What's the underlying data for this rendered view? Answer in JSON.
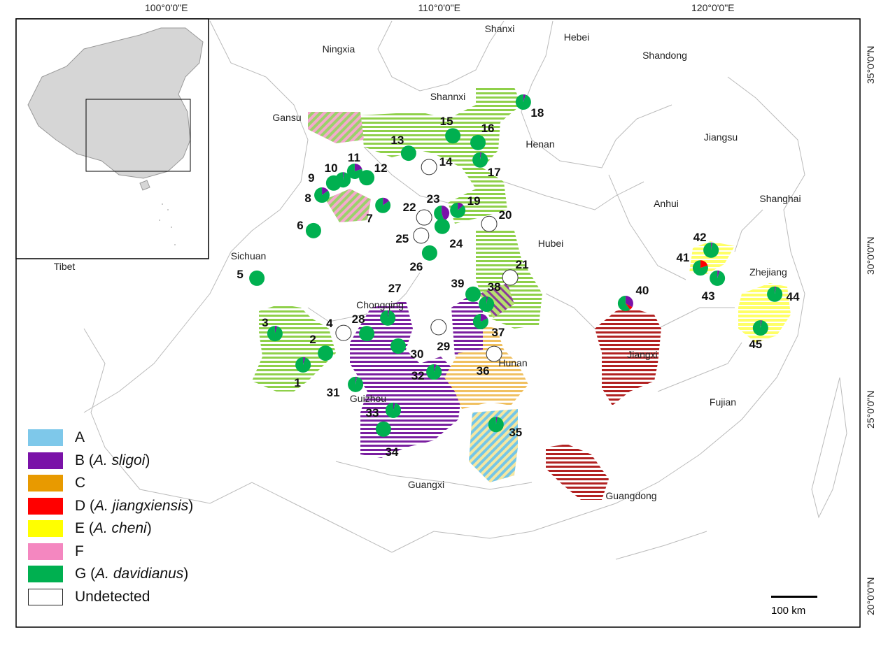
{
  "axes": {
    "top_ticks": [
      {
        "lon": 100,
        "label": "100°0'0\"E"
      },
      {
        "lon": 110,
        "label": "110°0'0\"E"
      },
      {
        "lon": 120,
        "label": "120°0'0\"E"
      }
    ],
    "right_ticks": [
      {
        "lat": 35,
        "label": "35°0'0\"N"
      },
      {
        "lat": 30,
        "label": "30°0'0\"N"
      },
      {
        "lat": 25,
        "label": "25°0'0\"N"
      },
      {
        "lat": 20,
        "label": "20°0'0\"N"
      }
    ]
  },
  "provinces": [
    "Shanxi",
    "Hebei",
    "Ningxia",
    "Shandong",
    "Shannxi",
    "Gansu",
    "Henan",
    "Jiangsu",
    "Anhui",
    "Shanghai",
    "Sichuan",
    "Hubei",
    "Tibet",
    "Zhejiang",
    "Chongqing",
    "Hunan",
    "Jiangxi",
    "Guizhou",
    "Fujian",
    "Guangxi",
    "Guangdong"
  ],
  "legend": [
    {
      "key": "A",
      "label": "A",
      "species": "",
      "color": "#7ec8ea"
    },
    {
      "key": "B",
      "label": "B (",
      "species": "A. sligoi",
      "color": "#7a12a8"
    },
    {
      "key": "C",
      "label": "C",
      "species": "",
      "color": "#e89a00"
    },
    {
      "key": "D",
      "label": "D (",
      "species": "A. jiangxiensis",
      "color": "#ff0000"
    },
    {
      "key": "E",
      "label": "E (",
      "species": "A. cheni",
      "color": "#ffff00"
    },
    {
      "key": "F",
      "label": "F",
      "species": "",
      "color": "#f487c0"
    },
    {
      "key": "G",
      "label": "G (",
      "species": "A. davidianus",
      "color": "#00b050"
    },
    {
      "key": "U",
      "label": "Undetected",
      "species": "",
      "color": "#ffffff"
    }
  ],
  "scale_bar": "100 km",
  "sites": [
    {
      "id": "1",
      "lon": 104.51,
      "lat": 26.4,
      "comp": {
        "G": 0.95,
        "B": 0.05
      }
    },
    {
      "id": "2",
      "lon": 105.33,
      "lat": 26.73,
      "comp": {
        "G": 1
      }
    },
    {
      "id": "3",
      "lon": 103.48,
      "lat": 27.28,
      "comp": {
        "G": 0.95,
        "B": 0.05
      }
    },
    {
      "id": "4",
      "lon": 105.99,
      "lat": 27.3,
      "comp": {
        "U": 1
      }
    },
    {
      "id": "5",
      "lon": 102.82,
      "lat": 28.84,
      "comp": {
        "G": 1
      }
    },
    {
      "id": "6",
      "lon": 104.89,
      "lat": 30.18,
      "comp": {
        "G": 1
      }
    },
    {
      "id": "7",
      "lon": 107.43,
      "lat": 30.89,
      "comp": {
        "G": 0.85,
        "B": 0.15
      }
    },
    {
      "id": "8",
      "lon": 105.2,
      "lat": 31.18,
      "comp": {
        "G": 0.85,
        "B": 0.15
      }
    },
    {
      "id": "9",
      "lon": 105.63,
      "lat": 31.52,
      "comp": {
        "G": 1
      }
    },
    {
      "id": "10",
      "lon": 105.97,
      "lat": 31.61,
      "comp": {
        "G": 0.97,
        "B": 0.03
      }
    },
    {
      "id": "11",
      "lon": 106.4,
      "lat": 31.85,
      "comp": {
        "G": 0.8,
        "B": 0.2
      }
    },
    {
      "id": "12",
      "lon": 106.84,
      "lat": 31.67,
      "comp": {
        "G": 1
      }
    },
    {
      "id": "13",
      "lon": 108.37,
      "lat": 32.36,
      "comp": {
        "G": 1
      }
    },
    {
      "id": "14",
      "lon": 109.12,
      "lat": 31.97,
      "comp": {
        "U": 1
      }
    },
    {
      "id": "15",
      "lon": 109.99,
      "lat": 32.85,
      "comp": {
        "G": 1
      }
    },
    {
      "id": "16",
      "lon": 110.91,
      "lat": 32.66,
      "comp": {
        "G": 1
      }
    },
    {
      "id": "17",
      "lon": 110.99,
      "lat": 32.17,
      "comp": {
        "G": 0.97,
        "B": 0.03
      }
    },
    {
      "id": "18",
      "lon": 112.57,
      "lat": 33.8,
      "comp": {
        "G": 0.95,
        "B": 0.05
      }
    },
    {
      "id": "19",
      "lon": 110.17,
      "lat": 30.75,
      "comp": {
        "G": 0.87,
        "B": 0.13
      }
    },
    {
      "id": "20",
      "lon": 111.32,
      "lat": 30.37,
      "comp": {
        "U": 1
      }
    },
    {
      "id": "21",
      "lon": 112.09,
      "lat": 28.86,
      "comp": {
        "U": 1
      }
    },
    {
      "id": "22",
      "lon": 108.94,
      "lat": 30.55,
      "comp": {
        "U": 1
      }
    },
    {
      "id": "23",
      "lon": 109.58,
      "lat": 30.67,
      "comp": {
        "G": 0.55,
        "B": 0.45
      }
    },
    {
      "id": "24",
      "lon": 109.6,
      "lat": 30.3,
      "comp": {
        "G": 1
      }
    },
    {
      "id": "25",
      "lon": 108.83,
      "lat": 30.04,
      "comp": {
        "U": 1
      }
    },
    {
      "id": "26",
      "lon": 109.14,
      "lat": 29.55,
      "comp": {
        "G": 1
      }
    },
    {
      "id": "27",
      "lon": 107.61,
      "lat": 27.72,
      "comp": {
        "G": 0.97,
        "B": 0.03
      }
    },
    {
      "id": "28",
      "lon": 106.84,
      "lat": 27.28,
      "comp": {
        "G": 1
      }
    },
    {
      "id": "29",
      "lon": 109.47,
      "lat": 27.46,
      "comp": {
        "U": 1
      }
    },
    {
      "id": "30",
      "lon": 107.99,
      "lat": 26.93,
      "comp": {
        "G": 1
      }
    },
    {
      "id": "31",
      "lon": 106.43,
      "lat": 25.85,
      "comp": {
        "G": 0.97,
        "B": 0.03
      }
    },
    {
      "id": "32",
      "lon": 109.3,
      "lat": 26.2,
      "comp": {
        "G": 0.95,
        "B": 0.05
      }
    },
    {
      "id": "33",
      "lon": 107.81,
      "lat": 25.12,
      "comp": {
        "G": 0.96,
        "B": 0.04
      }
    },
    {
      "id": "34",
      "lon": 107.45,
      "lat": 24.59,
      "comp": {
        "G": 1
      }
    },
    {
      "id": "35",
      "lon": 111.57,
      "lat": 24.72,
      "comp": {
        "G": 0.97,
        "B": 0.03
      }
    },
    {
      "id": "36",
      "lon": 111.5,
      "lat": 26.71,
      "comp": {
        "U": 1
      }
    },
    {
      "id": "37",
      "lon": 111.01,
      "lat": 27.62,
      "comp": {
        "G": 0.82,
        "B": 0.18
      }
    },
    {
      "id": "38",
      "lon": 111.22,
      "lat": 28.11,
      "comp": {
        "G": 0.97,
        "B": 0.03
      }
    },
    {
      "id": "39",
      "lon": 110.73,
      "lat": 28.39,
      "comp": {
        "G": 1
      }
    },
    {
      "id": "40",
      "lon": 116.31,
      "lat": 28.13,
      "comp": {
        "G": 0.6,
        "B": 0.33,
        "D": 0.07
      }
    },
    {
      "id": "41",
      "lon": 119.05,
      "lat": 29.13,
      "comp": {
        "G": 0.8,
        "D": 0.2
      }
    },
    {
      "id": "42",
      "lon": 119.44,
      "lat": 29.63,
      "comp": {
        "G": 0.97,
        "B": 0.03
      }
    },
    {
      "id": "43",
      "lon": 119.67,
      "lat": 28.84,
      "comp": {
        "G": 0.95,
        "B": 0.05
      }
    },
    {
      "id": "44",
      "lon": 121.77,
      "lat": 28.39,
      "comp": {
        "G": 0.97,
        "B": 0.03
      }
    },
    {
      "id": "45",
      "lon": 121.25,
      "lat": 27.44,
      "comp": {
        "G": 0.97,
        "B": 0.03
      }
    }
  ]
}
